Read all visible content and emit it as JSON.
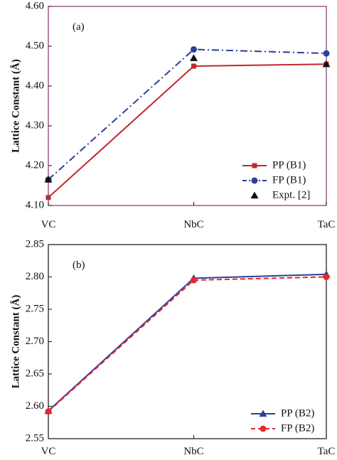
{
  "chart_data": [
    {
      "type": "line",
      "panel_label": "(a)",
      "ylabel": "Lattice Constant (Å)",
      "categories": [
        "VC",
        "NbC",
        "TaC"
      ],
      "ylim": [
        4.1,
        4.6
      ],
      "yticks": [
        "4.10",
        "4.20",
        "4.30",
        "4.40",
        "4.50",
        "4.60"
      ],
      "grid": false,
      "legend_position": "bottom-right",
      "series": [
        {
          "name": "PP (B1)",
          "values": [
            4.12,
            4.45,
            4.455
          ],
          "color": "#c0282d",
          "marker": "square",
          "line": "solid"
        },
        {
          "name": "FP (B1)",
          "values": [
            4.165,
            4.492,
            4.482
          ],
          "color": "#2b3f97",
          "marker": "circle",
          "line": "dashdot"
        },
        {
          "name": "Expt. [2]",
          "values": [
            4.165,
            4.47,
            4.455
          ],
          "color": "#111111",
          "marker": "triangle",
          "line": "none"
        }
      ]
    },
    {
      "type": "line",
      "panel_label": "(b)",
      "ylabel": "Lattice Constant (Å)",
      "categories": [
        "VC",
        "NbC",
        "TaC"
      ],
      "ylim": [
        2.55,
        2.85
      ],
      "yticks": [
        "2.55",
        "2.60",
        "2.65",
        "2.70",
        "2.75",
        "2.80",
        "2.85"
      ],
      "grid": false,
      "legend_position": "bottom-right",
      "series": [
        {
          "name": "PP (B2)",
          "values": [
            2.593,
            2.798,
            2.804
          ],
          "color": "#2b3f97",
          "marker": "triangle",
          "line": "solid"
        },
        {
          "name": "FP (B2)",
          "values": [
            2.592,
            2.795,
            2.8
          ],
          "color": "#e8262b",
          "marker": "circle",
          "line": "dashed"
        }
      ]
    }
  ]
}
